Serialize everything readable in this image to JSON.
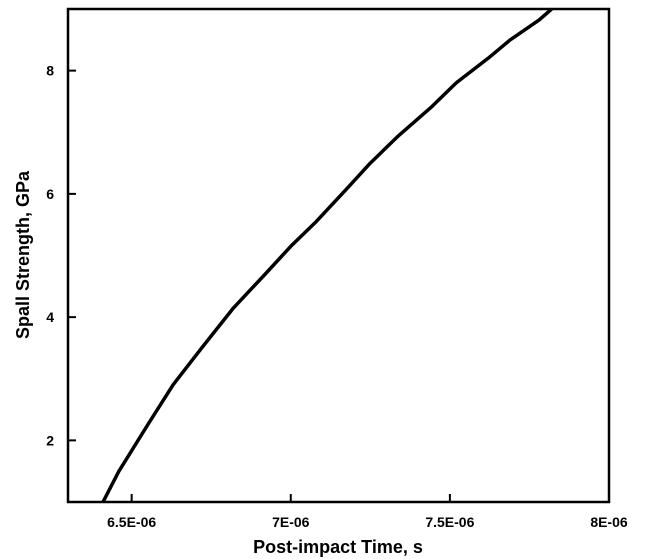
{
  "chart_data": {
    "type": "line",
    "title": "",
    "xlabel": "Post-impact Time, s",
    "ylabel": "Spall Strength, GPa",
    "xlim": [
      6.3e-06,
      8e-06
    ],
    "ylim": [
      1.0,
      9.0
    ],
    "xticks": [
      {
        "value": 6.5e-06,
        "label": "6.5E-06"
      },
      {
        "value": 7e-06,
        "label": "7E-06"
      },
      {
        "value": 7.5e-06,
        "label": "7.5E-06"
      },
      {
        "value": 8e-06,
        "label": "8E-06"
      }
    ],
    "yticks": [
      {
        "value": 2,
        "label": "2"
      },
      {
        "value": 4,
        "label": "4"
      },
      {
        "value": 6,
        "label": "6"
      },
      {
        "value": 8,
        "label": "8"
      }
    ],
    "grid": false,
    "legend": "none",
    "series": [
      {
        "color": "#000000",
        "x": [
          6.41e-06,
          6.46e-06,
          6.55e-06,
          6.63e-06,
          6.72e-06,
          6.82e-06,
          6.92e-06,
          7e-06,
          7.08e-06,
          7.17e-06,
          7.25e-06,
          7.34e-06,
          7.44e-06,
          7.52e-06,
          7.62e-06,
          7.69e-06,
          7.78e-06,
          7.82e-06
        ],
        "y": [
          1.0,
          1.5,
          2.25,
          2.9,
          3.5,
          4.15,
          4.7,
          5.15,
          5.55,
          6.05,
          6.5,
          6.95,
          7.4,
          7.8,
          8.2,
          8.5,
          8.82,
          9.0
        ]
      }
    ]
  }
}
